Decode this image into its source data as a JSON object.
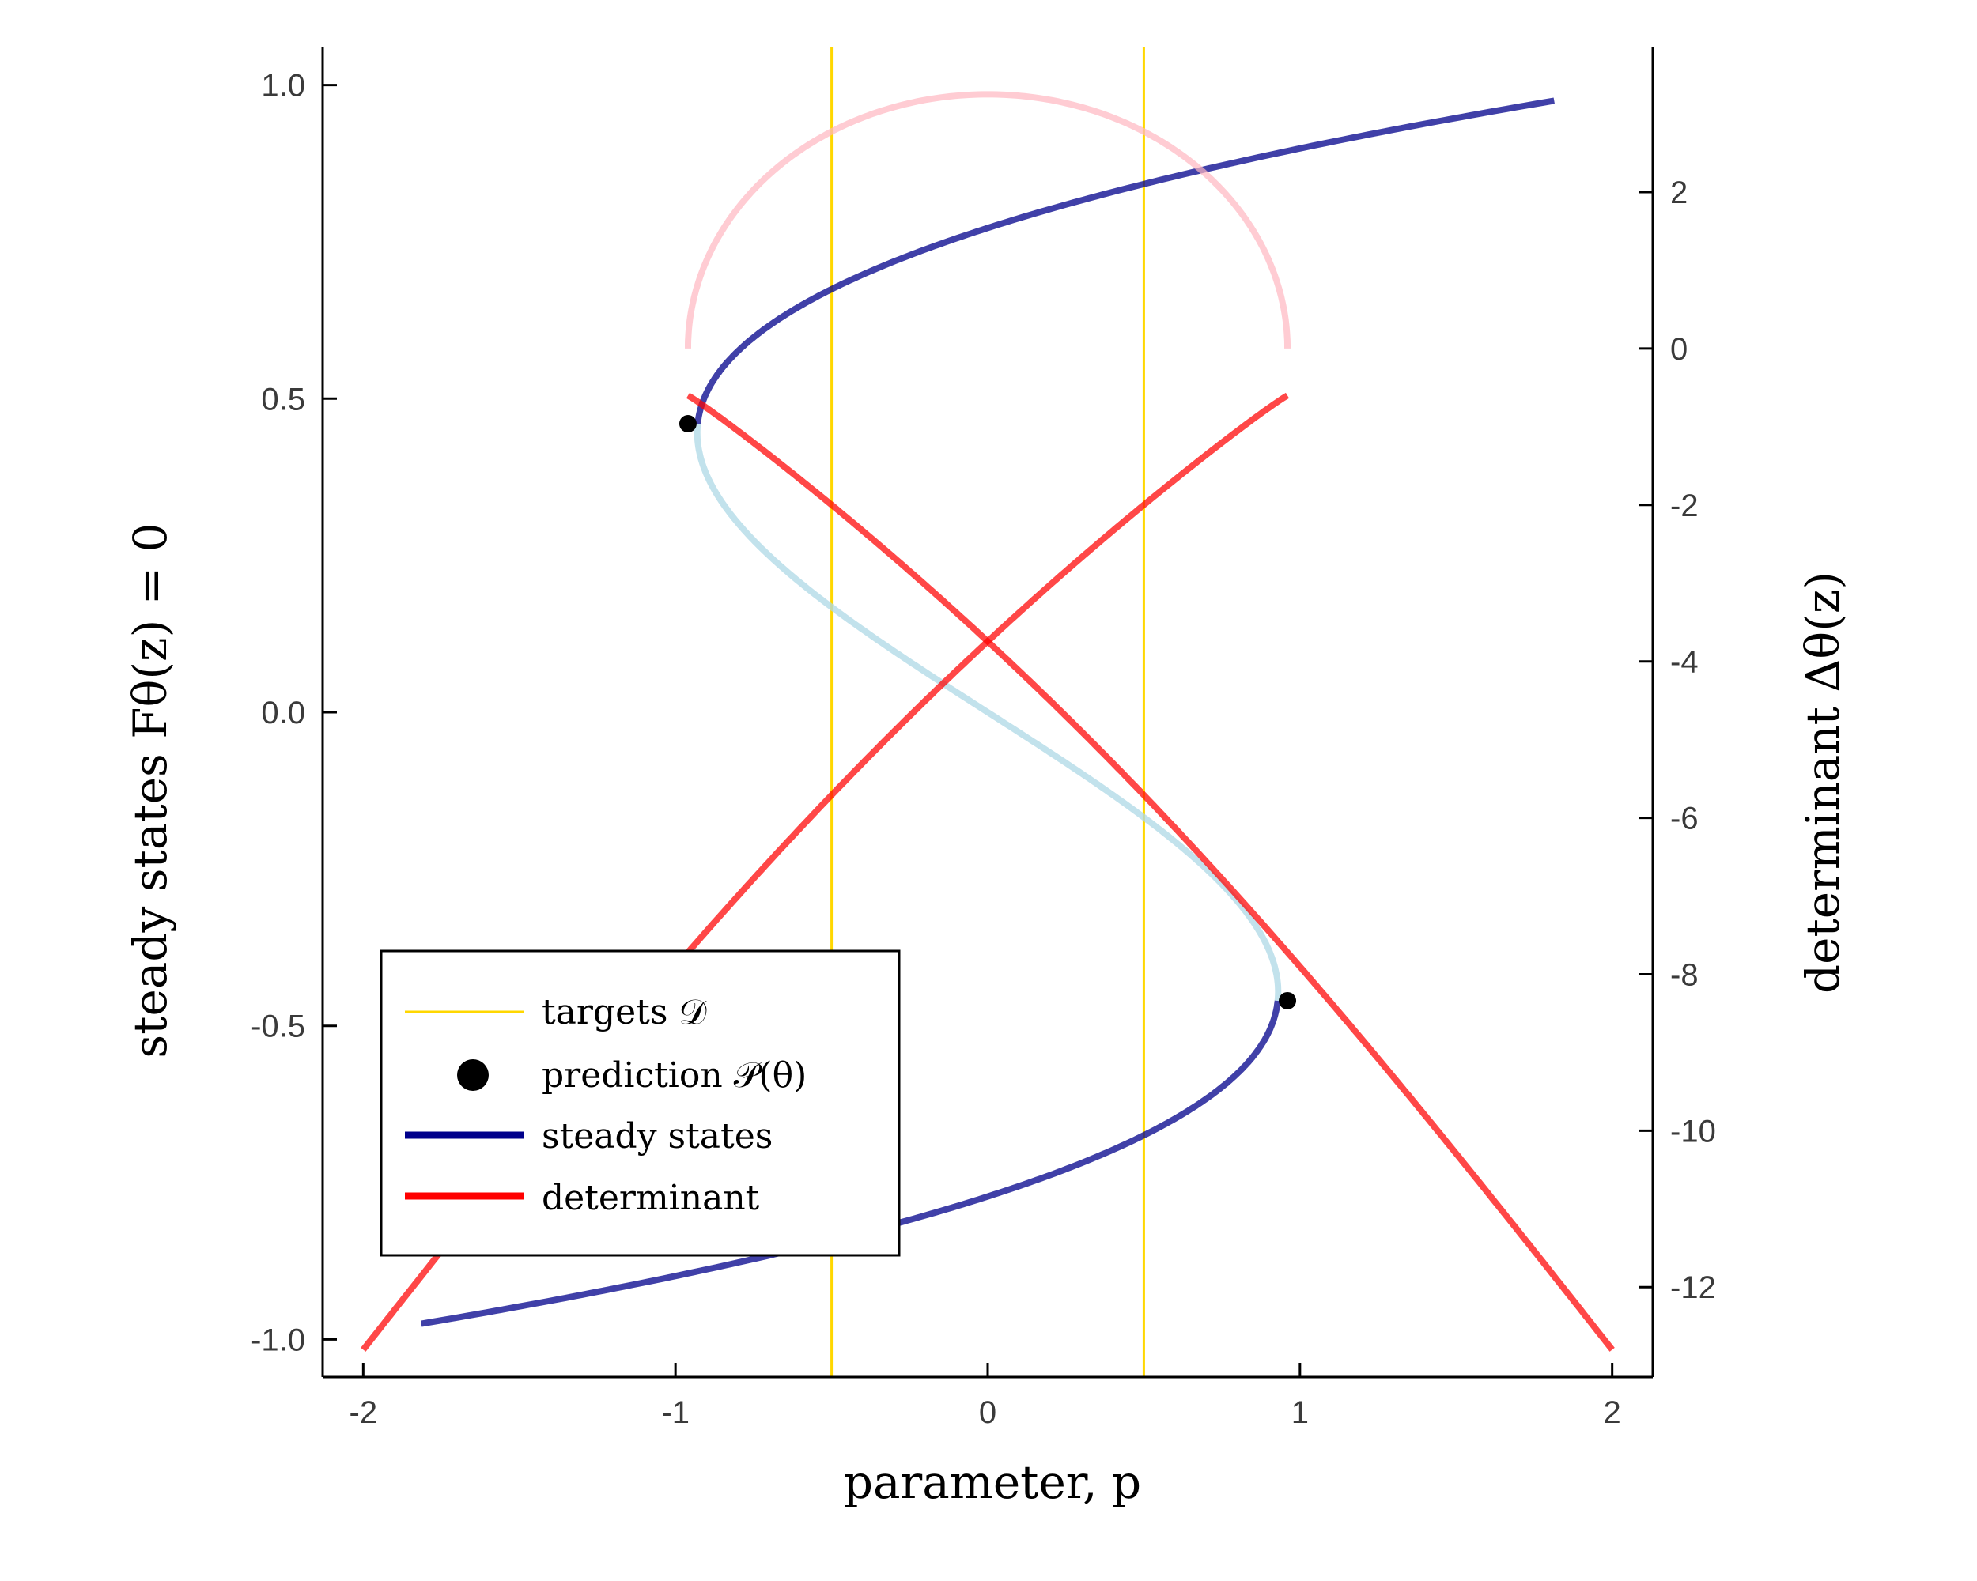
{
  "chart_data": {
    "type": "line",
    "x": {
      "label": "parameter, p",
      "lim": [
        -2.13,
        2.13
      ],
      "ticks": [
        -2,
        -1,
        0,
        1,
        2
      ],
      "tick_labels": [
        "-2",
        "-1",
        "0",
        "1",
        "2"
      ]
    },
    "y_left": {
      "label": "steady states    Fθ(z) = 0",
      "lim": [
        -1.06,
        1.06
      ],
      "ticks": [
        1.0,
        0.5,
        0.0,
        -0.5,
        -1.0
      ],
      "tick_labels": [
        "1.0",
        "0.5",
        "0.0",
        "-0.5",
        "-1.0"
      ]
    },
    "y_right": {
      "label": "determinant Δθ(z)",
      "lim": [
        -13.15,
        3.85
      ],
      "ticks": [
        2,
        0,
        -2,
        -4,
        -6,
        -8,
        -10,
        -12
      ],
      "tick_labels": [
        "2",
        "0",
        "-2",
        "-4",
        "-6",
        "-8",
        "-10",
        "-12"
      ]
    },
    "targets": {
      "name": "targets 𝒟",
      "x": [
        -0.5,
        0.5
      ],
      "color": "#FFD700"
    },
    "predictions": {
      "name": "prediction 𝒫(θ)",
      "points": [
        {
          "x": -0.96,
          "y": 0.46
        },
        {
          "x": 0.96,
          "y": -0.46
        }
      ],
      "color": "#000000"
    },
    "steady_states": {
      "name": "steady states",
      "relation": "p = z - z^3 + 2z^3... (p = (3z - 4z^3 style fold))",
      "z_range": [
        -0.98,
        0.98
      ],
      "color_stable": "#00008B",
      "color_unstable": "#ADD8E6"
    },
    "determinant": {
      "name": "determinant",
      "color_strong": "#FF0000",
      "color_faded": "#FFB6C1"
    },
    "legend": {
      "position": "bottom-left",
      "entries": [
        "targets 𝒟",
        "prediction 𝒫(θ)",
        "steady states",
        "determinant"
      ]
    },
    "grid": false
  }
}
